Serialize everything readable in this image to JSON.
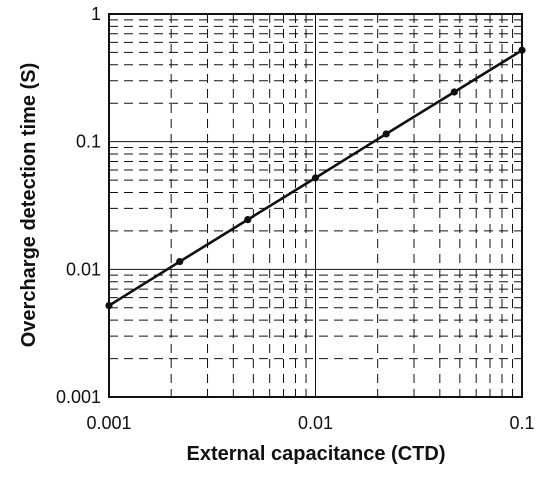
{
  "chart_data": {
    "type": "line",
    "xlabel": "External capacitance (CTD)",
    "ylabel": "Overcharge detection time (S)",
    "x_scale": "log",
    "y_scale": "log",
    "xlim": [
      0.001,
      0.1
    ],
    "ylim": [
      0.001,
      1
    ],
    "x_ticks": [
      "0.001",
      "0.01",
      "0.1"
    ],
    "y_ticks": [
      "0.001",
      "0.01",
      "0.1",
      "1"
    ],
    "grid": true,
    "series": [
      {
        "x": [
          0.001,
          0.0022,
          0.0047,
          0.01,
          0.022,
          0.047,
          0.1
        ],
        "y": [
          0.0052,
          0.0115,
          0.0245,
          0.052,
          0.115,
          0.245,
          0.52
        ]
      }
    ]
  }
}
